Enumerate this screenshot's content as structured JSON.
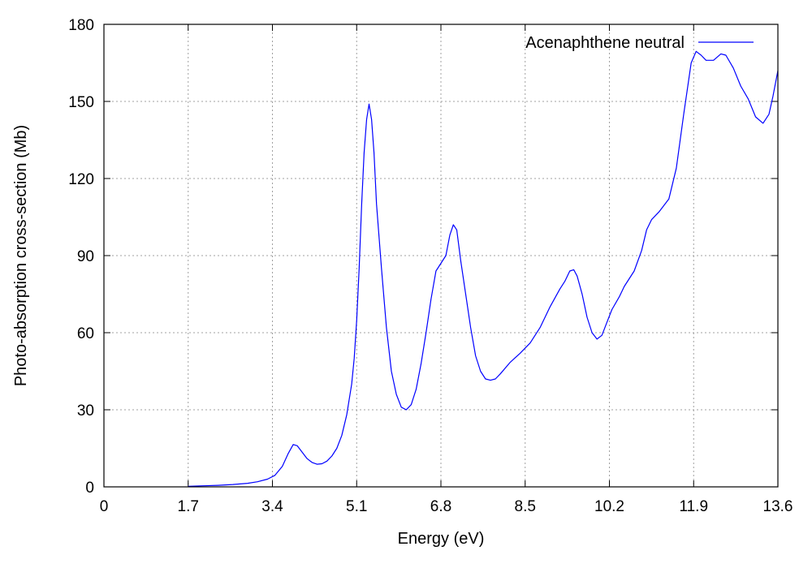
{
  "chart_data": {
    "type": "line",
    "xlabel": "Energy (eV)",
    "ylabel": "Photo-absorption cross-section (Mb)",
    "xlim": [
      0,
      13.6
    ],
    "ylim": [
      0,
      180
    ],
    "x_ticks": [
      "0",
      "1.7",
      "3.4",
      "5.1",
      "6.8",
      "8.5",
      "10.2",
      "11.9",
      "13.6"
    ],
    "y_ticks": [
      "0",
      "30",
      "60",
      "90",
      "120",
      "150",
      "180"
    ],
    "grid": true,
    "legend_position": "top-right",
    "series": [
      {
        "name": "Acenaphthene neutral",
        "color": "#0000ff",
        "points": [
          [
            1.7,
            0.2
          ],
          [
            2.0,
            0.4
          ],
          [
            2.3,
            0.6
          ],
          [
            2.6,
            0.9
          ],
          [
            2.9,
            1.4
          ],
          [
            3.1,
            2.0
          ],
          [
            3.3,
            3.0
          ],
          [
            3.45,
            4.5
          ],
          [
            3.6,
            8.0
          ],
          [
            3.72,
            13.0
          ],
          [
            3.82,
            16.5
          ],
          [
            3.9,
            16.0
          ],
          [
            4.0,
            13.5
          ],
          [
            4.1,
            11.0
          ],
          [
            4.2,
            9.5
          ],
          [
            4.3,
            8.8
          ],
          [
            4.4,
            9.0
          ],
          [
            4.5,
            10.0
          ],
          [
            4.6,
            12.0
          ],
          [
            4.7,
            15.0
          ],
          [
            4.8,
            20.0
          ],
          [
            4.9,
            28.0
          ],
          [
            5.0,
            40.0
          ],
          [
            5.05,
            50.0
          ],
          [
            5.1,
            65.0
          ],
          [
            5.15,
            85.0
          ],
          [
            5.2,
            110.0
          ],
          [
            5.25,
            130.0
          ],
          [
            5.3,
            143.0
          ],
          [
            5.35,
            149.0
          ],
          [
            5.4,
            143.0
          ],
          [
            5.45,
            130.0
          ],
          [
            5.5,
            110.0
          ],
          [
            5.6,
            85.0
          ],
          [
            5.7,
            62.0
          ],
          [
            5.8,
            45.0
          ],
          [
            5.9,
            36.0
          ],
          [
            6.0,
            31.0
          ],
          [
            6.1,
            30.0
          ],
          [
            6.2,
            32.0
          ],
          [
            6.3,
            38.0
          ],
          [
            6.4,
            48.0
          ],
          [
            6.5,
            60.0
          ],
          [
            6.6,
            73.0
          ],
          [
            6.7,
            84.0
          ],
          [
            6.8,
            87.0
          ],
          [
            6.9,
            90.0
          ],
          [
            6.98,
            98.0
          ],
          [
            7.05,
            102.0
          ],
          [
            7.12,
            100.0
          ],
          [
            7.2,
            88.0
          ],
          [
            7.3,
            75.0
          ],
          [
            7.4,
            62.0
          ],
          [
            7.5,
            51.0
          ],
          [
            7.6,
            45.0
          ],
          [
            7.7,
            42.0
          ],
          [
            7.8,
            41.5
          ],
          [
            7.9,
            42.0
          ],
          [
            8.0,
            44.0
          ],
          [
            8.2,
            48.5
          ],
          [
            8.4,
            52.0
          ],
          [
            8.6,
            56.0
          ],
          [
            8.8,
            62.0
          ],
          [
            9.0,
            70.0
          ],
          [
            9.2,
            77.0
          ],
          [
            9.3,
            80.0
          ],
          [
            9.4,
            84.0
          ],
          [
            9.48,
            84.5
          ],
          [
            9.55,
            82.0
          ],
          [
            9.65,
            75.0
          ],
          [
            9.75,
            66.0
          ],
          [
            9.85,
            60.0
          ],
          [
            9.95,
            57.5
          ],
          [
            10.05,
            59.0
          ],
          [
            10.15,
            64.0
          ],
          [
            10.25,
            69.0
          ],
          [
            10.4,
            74.0
          ],
          [
            10.5,
            78.0
          ],
          [
            10.7,
            84.0
          ],
          [
            10.85,
            92.0
          ],
          [
            10.95,
            100.0
          ],
          [
            11.05,
            104.0
          ],
          [
            11.2,
            107.0
          ],
          [
            11.4,
            112.0
          ],
          [
            11.55,
            124.0
          ],
          [
            11.7,
            145.0
          ],
          [
            11.85,
            165.0
          ],
          [
            11.95,
            169.5
          ],
          [
            12.05,
            168.0
          ],
          [
            12.15,
            166.0
          ],
          [
            12.3,
            166.0
          ],
          [
            12.45,
            168.5
          ],
          [
            12.55,
            168.0
          ],
          [
            12.7,
            163.0
          ],
          [
            12.85,
            156.0
          ],
          [
            13.0,
            151.0
          ],
          [
            13.15,
            144.0
          ],
          [
            13.3,
            141.5
          ],
          [
            13.42,
            145.0
          ],
          [
            13.5,
            152.0
          ],
          [
            13.6,
            162.0
          ]
        ]
      }
    ]
  }
}
